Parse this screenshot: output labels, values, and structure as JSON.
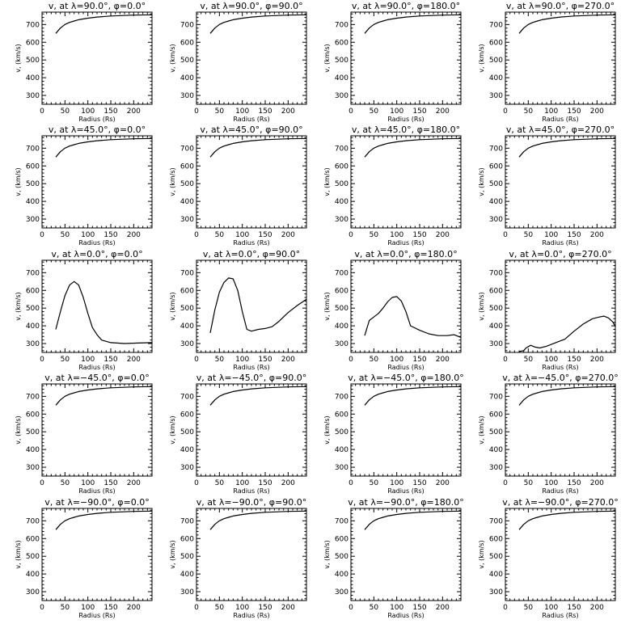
{
  "chart_data": [
    {
      "type": "line",
      "title": "v, at λ=90.0°, φ=0.0°",
      "xlabel": "Radius (Rs)",
      "ylabel": "v, (km/s)",
      "xlim": [
        0,
        240
      ],
      "ylim": [
        250,
        770
      ],
      "xticks": [
        "0",
        "50",
        "100",
        "150",
        "200"
      ],
      "yticks": [
        "300",
        "400",
        "500",
        "600",
        "700"
      ],
      "x": [
        30,
        40,
        50,
        60,
        70,
        80,
        100,
        120,
        150,
        200,
        240
      ],
      "y": [
        650,
        680,
        700,
        712,
        720,
        727,
        736,
        742,
        748,
        753,
        755
      ]
    },
    {
      "type": "line",
      "title": "v, at λ=90.0°, φ=90.0°",
      "xlabel": "Radius (Rs)",
      "ylabel": "v, (km/s)",
      "xlim": [
        0,
        240
      ],
      "ylim": [
        250,
        770
      ],
      "xticks": [
        "0",
        "50",
        "100",
        "150",
        "200"
      ],
      "yticks": [
        "300",
        "400",
        "500",
        "600",
        "700"
      ],
      "x": [
        30,
        40,
        50,
        60,
        70,
        80,
        100,
        120,
        150,
        200,
        240
      ],
      "y": [
        650,
        680,
        700,
        712,
        720,
        727,
        736,
        742,
        748,
        753,
        755
      ]
    },
    {
      "type": "line",
      "title": "v, at λ=90.0°, φ=180.0°",
      "xlabel": "Radius (Rs)",
      "ylabel": "v, (km/s)",
      "xlim": [
        0,
        240
      ],
      "ylim": [
        250,
        770
      ],
      "xticks": [
        "0",
        "50",
        "100",
        "150",
        "200"
      ],
      "yticks": [
        "300",
        "400",
        "500",
        "600",
        "700"
      ],
      "x": [
        30,
        40,
        50,
        60,
        70,
        80,
        100,
        120,
        150,
        200,
        240
      ],
      "y": [
        650,
        680,
        700,
        712,
        720,
        727,
        736,
        742,
        748,
        753,
        755
      ]
    },
    {
      "type": "line",
      "title": "v, at λ=90.0°, φ=270.0°",
      "xlabel": "Radius (Rs)",
      "ylabel": "v, (km/s)",
      "xlim": [
        0,
        240
      ],
      "ylim": [
        250,
        770
      ],
      "xticks": [
        "0",
        "50",
        "100",
        "150",
        "200"
      ],
      "yticks": [
        "300",
        "400",
        "500",
        "600",
        "700"
      ],
      "x": [
        30,
        40,
        50,
        60,
        70,
        80,
        100,
        120,
        150,
        200,
        240
      ],
      "y": [
        650,
        680,
        700,
        712,
        720,
        727,
        736,
        742,
        748,
        753,
        755
      ]
    },
    {
      "type": "line",
      "title": "v, at λ=45.0°, φ=0.0°",
      "xlabel": "Radius (Rs)",
      "ylabel": "v, (km/s)",
      "xlim": [
        0,
        240
      ],
      "ylim": [
        250,
        770
      ],
      "xticks": [
        "0",
        "50",
        "100",
        "150",
        "200"
      ],
      "yticks": [
        "300",
        "400",
        "500",
        "600",
        "700"
      ],
      "x": [
        30,
        40,
        50,
        60,
        70,
        80,
        100,
        120,
        150,
        200,
        240
      ],
      "y": [
        650,
        680,
        700,
        712,
        720,
        727,
        736,
        742,
        748,
        753,
        755
      ]
    },
    {
      "type": "line",
      "title": "v, at λ=45.0°, φ=90.0°",
      "xlabel": "Radius (Rs)",
      "ylabel": "v, (km/s)",
      "xlim": [
        0,
        240
      ],
      "ylim": [
        250,
        770
      ],
      "xticks": [
        "0",
        "50",
        "100",
        "150",
        "200"
      ],
      "yticks": [
        "300",
        "400",
        "500",
        "600",
        "700"
      ],
      "x": [
        30,
        40,
        50,
        60,
        70,
        80,
        100,
        120,
        150,
        200,
        240
      ],
      "y": [
        650,
        680,
        700,
        712,
        720,
        727,
        736,
        742,
        748,
        753,
        755
      ]
    },
    {
      "type": "line",
      "title": "v, at λ=45.0°, φ=180.0°",
      "xlabel": "Radius (Rs)",
      "ylabel": "v, (km/s)",
      "xlim": [
        0,
        240
      ],
      "ylim": [
        250,
        770
      ],
      "xticks": [
        "0",
        "50",
        "100",
        "150",
        "200"
      ],
      "yticks": [
        "300",
        "400",
        "500",
        "600",
        "700"
      ],
      "x": [
        30,
        40,
        50,
        60,
        70,
        80,
        100,
        120,
        150,
        200,
        240
      ],
      "y": [
        650,
        680,
        700,
        712,
        720,
        727,
        736,
        742,
        748,
        753,
        755
      ]
    },
    {
      "type": "line",
      "title": "v, at λ=45.0°, φ=270.0°",
      "xlabel": "Radius (Rs)",
      "ylabel": "v, (km/s)",
      "xlim": [
        0,
        240
      ],
      "ylim": [
        250,
        770
      ],
      "xticks": [
        "0",
        "50",
        "100",
        "150",
        "200"
      ],
      "yticks": [
        "300",
        "400",
        "500",
        "600",
        "700"
      ],
      "x": [
        30,
        40,
        50,
        60,
        70,
        80,
        100,
        120,
        150,
        200,
        240
      ],
      "y": [
        650,
        680,
        700,
        712,
        720,
        727,
        736,
        742,
        748,
        753,
        755
      ]
    },
    {
      "type": "line",
      "title": "v, at λ=0.0°, φ=0.0°",
      "xlabel": "Radius (Rs)",
      "ylabel": "v, (km/s)",
      "xlim": [
        0,
        240
      ],
      "ylim": [
        250,
        770
      ],
      "xticks": [
        "0",
        "50",
        "100",
        "150",
        "200"
      ],
      "yticks": [
        "300",
        "400",
        "500",
        "600",
        "700"
      ],
      "x": [
        30,
        40,
        50,
        60,
        70,
        80,
        90,
        100,
        110,
        120,
        130,
        150,
        180,
        210,
        240
      ],
      "y": [
        380,
        480,
        570,
        630,
        650,
        630,
        560,
        470,
        390,
        350,
        320,
        305,
        300,
        303,
        305
      ]
    },
    {
      "type": "line",
      "title": "v, at λ=0.0°, φ=90.0°",
      "xlabel": "Radius (Rs)",
      "ylabel": "v, (km/s)",
      "xlim": [
        0,
        240
      ],
      "ylim": [
        250,
        770
      ],
      "xticks": [
        "0",
        "50",
        "100",
        "150",
        "200"
      ],
      "yticks": [
        "300",
        "400",
        "500",
        "600",
        "700"
      ],
      "x": [
        30,
        40,
        50,
        60,
        70,
        80,
        90,
        100,
        110,
        120,
        135,
        150,
        165,
        180,
        200,
        220,
        240
      ],
      "y": [
        360,
        490,
        590,
        645,
        670,
        665,
        600,
        480,
        380,
        370,
        380,
        385,
        395,
        425,
        475,
        515,
        550
      ]
    },
    {
      "type": "line",
      "title": "v, at λ=0.0°, φ=180.0°",
      "xlabel": "Radius (Rs)",
      "ylabel": "v, (km/s)",
      "xlim": [
        0,
        240
      ],
      "ylim": [
        250,
        770
      ],
      "xticks": [
        "0",
        "50",
        "100",
        "150",
        "200"
      ],
      "yticks": [
        "300",
        "400",
        "500",
        "600",
        "700"
      ],
      "x": [
        30,
        40,
        50,
        60,
        70,
        80,
        90,
        100,
        110,
        120,
        130,
        150,
        170,
        190,
        210,
        225,
        240
      ],
      "y": [
        345,
        430,
        450,
        470,
        500,
        535,
        560,
        565,
        540,
        480,
        400,
        375,
        355,
        345,
        345,
        350,
        335
      ]
    },
    {
      "type": "line",
      "title": "v, at λ=0.0°, φ=270.0°",
      "xlabel": "Radius (Rs)",
      "ylabel": "v, (km/s)",
      "xlim": [
        0,
        240
      ],
      "ylim": [
        250,
        770
      ],
      "xticks": [
        "0",
        "50",
        "100",
        "150",
        "200"
      ],
      "yticks": [
        "300",
        "400",
        "500",
        "600",
        "700"
      ],
      "x": [
        30,
        40,
        45,
        55,
        65,
        75,
        90,
        110,
        130,
        150,
        170,
        190,
        205,
        215,
        225,
        235,
        240
      ],
      "y": [
        255,
        260,
        275,
        290,
        280,
        275,
        285,
        305,
        325,
        370,
        410,
        440,
        450,
        455,
        445,
        420,
        395
      ]
    },
    {
      "type": "line",
      "title": "v, at λ=−45.0°, φ=0.0°",
      "xlabel": "Radius (Rs)",
      "ylabel": "v, (km/s)",
      "xlim": [
        0,
        240
      ],
      "ylim": [
        250,
        770
      ],
      "xticks": [
        "0",
        "50",
        "100",
        "150",
        "200"
      ],
      "yticks": [
        "300",
        "400",
        "500",
        "600",
        "700"
      ],
      "x": [
        30,
        40,
        50,
        60,
        70,
        80,
        100,
        120,
        150,
        200,
        240
      ],
      "y": [
        650,
        680,
        700,
        712,
        720,
        727,
        736,
        742,
        748,
        753,
        755
      ]
    },
    {
      "type": "line",
      "title": "v, at λ=−45.0°, φ=90.0°",
      "xlabel": "Radius (Rs)",
      "ylabel": "v, (km/s)",
      "xlim": [
        0,
        240
      ],
      "ylim": [
        250,
        770
      ],
      "xticks": [
        "0",
        "50",
        "100",
        "150",
        "200"
      ],
      "yticks": [
        "300",
        "400",
        "500",
        "600",
        "700"
      ],
      "x": [
        30,
        40,
        50,
        60,
        70,
        80,
        100,
        120,
        150,
        200,
        240
      ],
      "y": [
        650,
        680,
        700,
        712,
        720,
        727,
        736,
        742,
        748,
        753,
        755
      ]
    },
    {
      "type": "line",
      "title": "v, at λ=−45.0°, φ=180.0°",
      "xlabel": "Radius (Rs)",
      "ylabel": "v, (km/s)",
      "xlim": [
        0,
        240
      ],
      "ylim": [
        250,
        770
      ],
      "xticks": [
        "0",
        "50",
        "100",
        "150",
        "200"
      ],
      "yticks": [
        "300",
        "400",
        "500",
        "600",
        "700"
      ],
      "x": [
        30,
        40,
        50,
        60,
        70,
        80,
        100,
        120,
        150,
        200,
        240
      ],
      "y": [
        650,
        680,
        700,
        712,
        720,
        727,
        736,
        742,
        748,
        753,
        755
      ]
    },
    {
      "type": "line",
      "title": "v, at λ=−45.0°, φ=270.0°",
      "xlabel": "Radius (Rs)",
      "ylabel": "v, (km/s)",
      "xlim": [
        0,
        240
      ],
      "ylim": [
        250,
        770
      ],
      "xticks": [
        "0",
        "50",
        "100",
        "150",
        "200"
      ],
      "yticks": [
        "300",
        "400",
        "500",
        "600",
        "700"
      ],
      "x": [
        30,
        40,
        50,
        60,
        70,
        80,
        100,
        120,
        150,
        200,
        240
      ],
      "y": [
        650,
        680,
        700,
        712,
        720,
        727,
        736,
        742,
        748,
        753,
        755
      ]
    },
    {
      "type": "line",
      "title": "v, at λ=−90.0°, φ=0.0°",
      "xlabel": "Radius (Rs)",
      "ylabel": "v, (km/s)",
      "xlim": [
        0,
        240
      ],
      "ylim": [
        250,
        770
      ],
      "xticks": [
        "0",
        "50",
        "100",
        "150",
        "200"
      ],
      "yticks": [
        "300",
        "400",
        "500",
        "600",
        "700"
      ],
      "x": [
        30,
        40,
        50,
        60,
        70,
        80,
        100,
        120,
        150,
        200,
        240
      ],
      "y": [
        650,
        680,
        700,
        712,
        720,
        727,
        736,
        742,
        748,
        753,
        755
      ]
    },
    {
      "type": "line",
      "title": "v, at λ=−90.0°, φ=90.0°",
      "xlabel": "Radius (Rs)",
      "ylabel": "v, (km/s)",
      "xlim": [
        0,
        240
      ],
      "ylim": [
        250,
        770
      ],
      "xticks": [
        "0",
        "50",
        "100",
        "150",
        "200"
      ],
      "yticks": [
        "300",
        "400",
        "500",
        "600",
        "700"
      ],
      "x": [
        30,
        40,
        50,
        60,
        70,
        80,
        100,
        120,
        150,
        200,
        240
      ],
      "y": [
        650,
        680,
        700,
        712,
        720,
        727,
        736,
        742,
        748,
        753,
        755
      ]
    },
    {
      "type": "line",
      "title": "v, at λ=−90.0°, φ=180.0°",
      "xlabel": "Radius (Rs)",
      "ylabel": "v, (km/s)",
      "xlim": [
        0,
        240
      ],
      "ylim": [
        250,
        770
      ],
      "xticks": [
        "0",
        "50",
        "100",
        "150",
        "200"
      ],
      "yticks": [
        "300",
        "400",
        "500",
        "600",
        "700"
      ],
      "x": [
        30,
        40,
        50,
        60,
        70,
        80,
        100,
        120,
        150,
        200,
        240
      ],
      "y": [
        650,
        680,
        700,
        712,
        720,
        727,
        736,
        742,
        748,
        753,
        755
      ]
    },
    {
      "type": "line",
      "title": "v, at λ=−90.0°, φ=270.0°",
      "xlabel": "Radius (Rs)",
      "ylabel": "v, (km/s)",
      "xlim": [
        0,
        240
      ],
      "ylim": [
        250,
        770
      ],
      "xticks": [
        "0",
        "50",
        "100",
        "150",
        "200"
      ],
      "yticks": [
        "300",
        "400",
        "500",
        "600",
        "700"
      ],
      "x": [
        30,
        40,
        50,
        60,
        70,
        80,
        100,
        120,
        150,
        200,
        240
      ],
      "y": [
        650,
        680,
        700,
        712,
        720,
        727,
        736,
        742,
        748,
        753,
        755
      ]
    }
  ]
}
